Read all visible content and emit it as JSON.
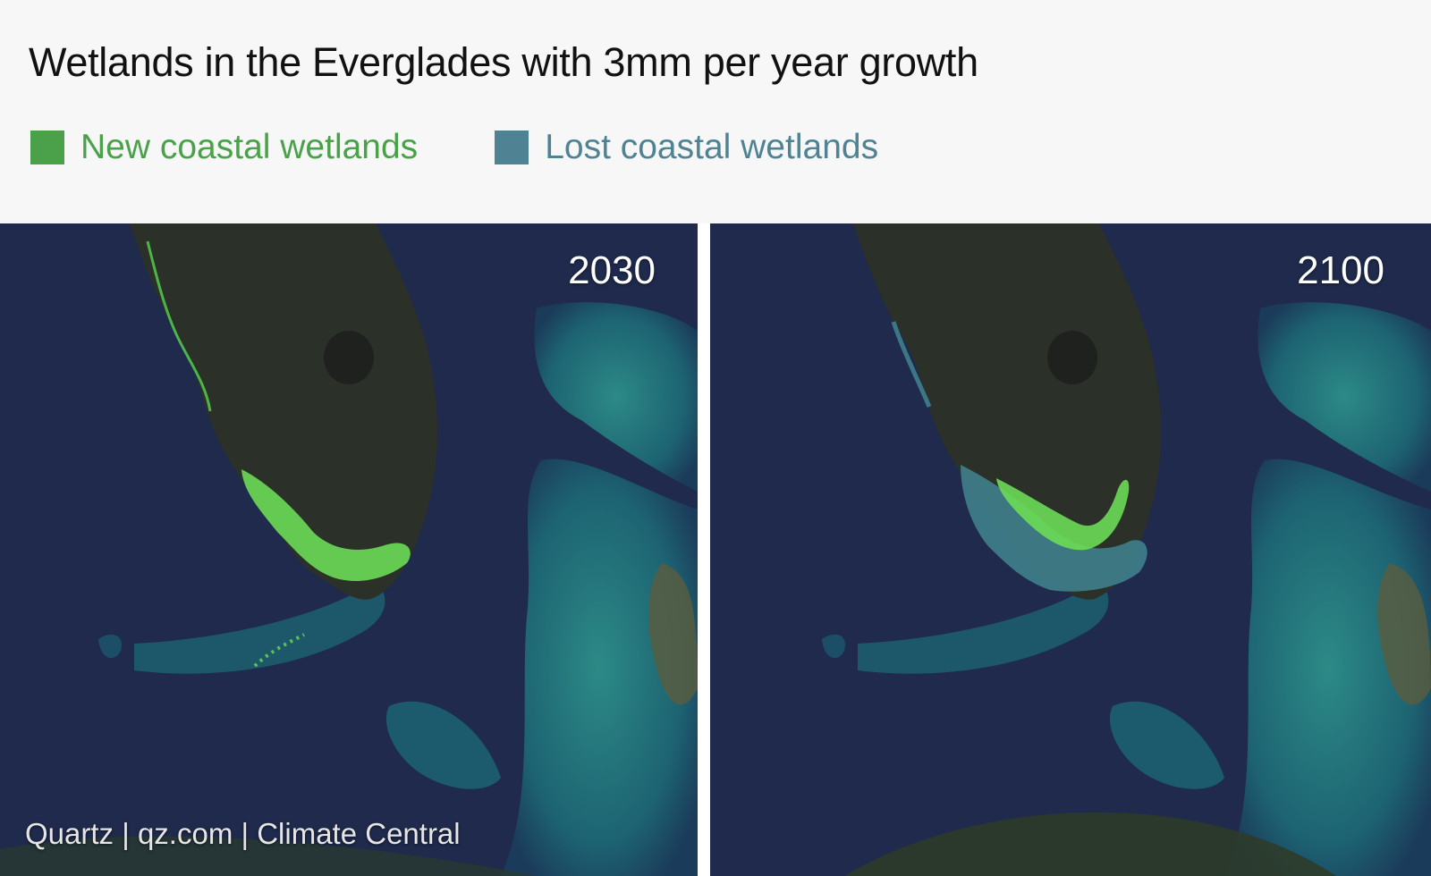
{
  "title": "Wetlands in the Everglades with 3mm per year growth",
  "legend": [
    {
      "label": "New coastal wetlands",
      "color": "#4aa14a"
    },
    {
      "label": "Lost coastal wetlands",
      "color": "#4f8293"
    }
  ],
  "maps": [
    {
      "year": "2030",
      "new_wetlands": "extensive",
      "lost_wetlands": "none visible"
    },
    {
      "year": "2100",
      "new_wetlands": "reduced",
      "lost_wetlands": "extensive"
    }
  ],
  "credit": "Quartz | qz.com | Climate Central",
  "colors": {
    "ocean": "#1f2a4d",
    "land": "#2b3028",
    "shallows": "#1d6f78",
    "new_wetland_fill": "#6bdc55",
    "lost_wetland_fill": "#3f7f8c"
  }
}
